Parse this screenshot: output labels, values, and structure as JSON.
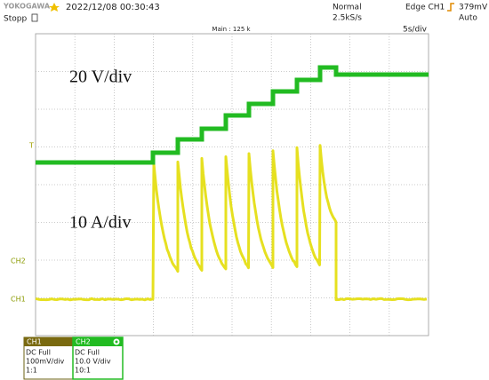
{
  "header": {
    "brand": "YOKOGAWA",
    "date_time": "2022/12/08 00:30:43",
    "status": "Stopp",
    "mode": "Normal",
    "sample_rate": "2.5kS/s",
    "trigger": "Edge CH1",
    "trigger_level": "379mV",
    "trigger_mode": "Auto"
  },
  "display": {
    "main": "Main : 125 k",
    "timebase": "5s/div",
    "annotations": [
      "20 V/div",
      "10 A/div"
    ],
    "markers": {
      "trigger": "T",
      "ch2": "CH2",
      "ch1": "CH1"
    }
  },
  "channels": [
    {
      "name": "CH1",
      "coupling": "DC Full",
      "scale": "100mV/div",
      "probe": "1:1"
    },
    {
      "name": "CH2",
      "coupling": "DC Full",
      "scale": "10.0 V/div",
      "probe": "10:1"
    }
  ]
}
